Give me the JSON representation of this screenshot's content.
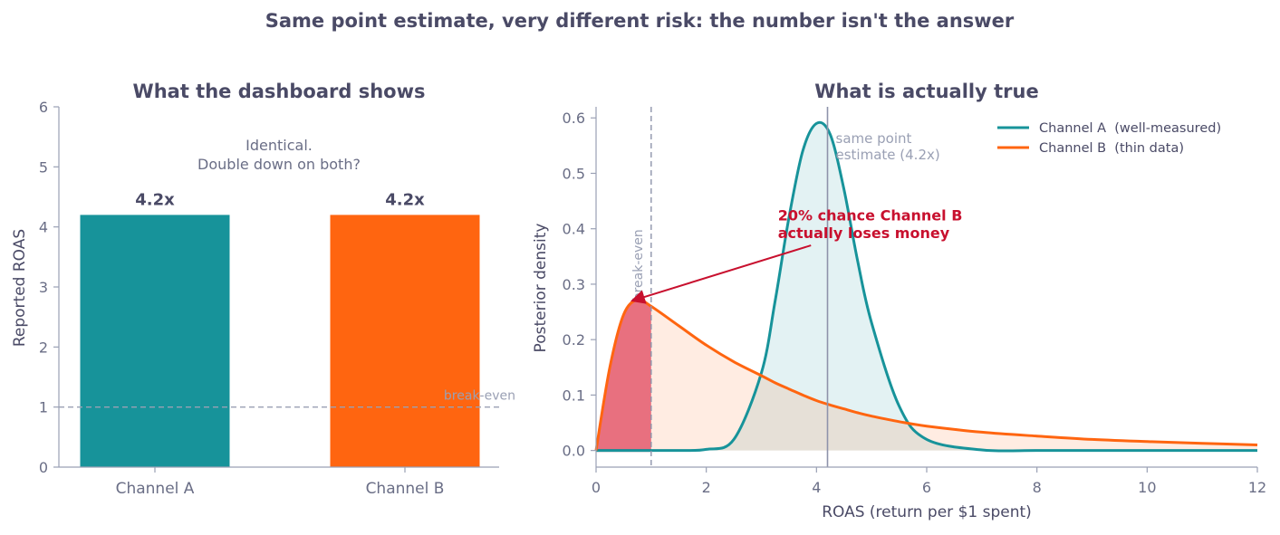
{
  "figure": {
    "suptitle": "Same point estimate, very different risk: the number isn't the answer"
  },
  "chart_data": [
    {
      "type": "bar",
      "title": "What the dashboard shows",
      "xlabel": "",
      "ylabel": "Reported ROAS",
      "ylim": [
        0,
        6
      ],
      "yticks": [
        0,
        1,
        2,
        3,
        4,
        5,
        6
      ],
      "categories": [
        "Channel A",
        "Channel B"
      ],
      "values": [
        4.2,
        4.2
      ],
      "bar_labels": [
        "4.2x",
        "4.2x"
      ],
      "colors": [
        "#17939a",
        "#ff6510"
      ],
      "reference_line": {
        "y": 1,
        "label": "break-even"
      },
      "annotation": {
        "line1": "Identical.",
        "line2": "Double down on both?"
      },
      "grid": false
    },
    {
      "type": "line",
      "title": "What is actually true",
      "xlabel": "ROAS (return per $1 spent)",
      "ylabel": "Posterior density",
      "xlim": [
        0,
        12
      ],
      "ylim": [
        -0.03,
        0.62
      ],
      "xticks": [
        0,
        2,
        4,
        6,
        8,
        10,
        12
      ],
      "yticks": [
        0.0,
        0.1,
        0.2,
        0.3,
        0.4,
        0.5,
        0.6
      ],
      "x": [
        0,
        0.25,
        0.5,
        0.75,
        1,
        1.5,
        2,
        2.5,
        3,
        3.25,
        3.5,
        3.75,
        4,
        4.25,
        4.5,
        4.75,
        5,
        5.5,
        6,
        7,
        8,
        9,
        10,
        11,
        12
      ],
      "series": [
        {
          "name": "Channel A  (well-measured)",
          "color": "#17939a",
          "values": [
            0,
            0,
            0,
            0,
            0,
            0,
            0.002,
            0.02,
            0.14,
            0.27,
            0.42,
            0.54,
            0.59,
            0.57,
            0.47,
            0.34,
            0.23,
            0.08,
            0.02,
            0.001,
            0,
            0,
            0,
            0,
            0
          ]
        },
        {
          "name": "Channel B  (thin data)",
          "color": "#ff6510",
          "values": [
            0,
            0.15,
            0.245,
            0.272,
            0.26,
            0.225,
            0.19,
            0.16,
            0.135,
            0.122,
            0.111,
            0.1,
            0.09,
            0.082,
            0.075,
            0.068,
            0.062,
            0.052,
            0.044,
            0.033,
            0.026,
            0.02,
            0.016,
            0.013,
            0.01
          ]
        }
      ],
      "vlines": [
        {
          "x": 1,
          "label": "break-even",
          "style": "dashed"
        },
        {
          "x": 4.2,
          "label_line1": "same point",
          "label_line2": "estimate (4.2x)",
          "style": "solid"
        }
      ],
      "loss_region": {
        "x0": 0,
        "x1": 1,
        "color": "#e8707f"
      },
      "annotation": {
        "line1": "20% chance Channel B",
        "line2": "actually loses money",
        "color": "#c8102e",
        "arrow_target": {
          "x": 0.65,
          "y": 0.27
        }
      },
      "legend": "top-right",
      "grid": false
    }
  ]
}
